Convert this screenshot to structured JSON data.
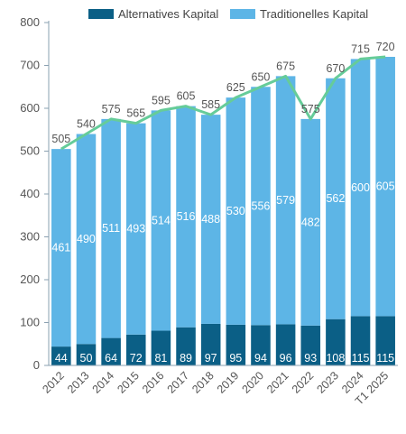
{
  "chart_data": {
    "type": "bar",
    "stacked": true,
    "categories": [
      "2012",
      "2013",
      "2014",
      "2015",
      "2016",
      "2017",
      "2018",
      "2019",
      "2020",
      "2021",
      "2022",
      "2023",
      "2024",
      "T1 2025"
    ],
    "series": [
      {
        "name": "Alternatives Kapital",
        "values": [
          44,
          50,
          64,
          72,
          81,
          89,
          97,
          95,
          94,
          96,
          93,
          108,
          115,
          115
        ]
      },
      {
        "name": "Traditionelles Kapital",
        "values": [
          461,
          490,
          511,
          493,
          514,
          516,
          488,
          530,
          556,
          579,
          482,
          562,
          600,
          605
        ]
      }
    ],
    "totals": [
      505,
      540,
      575,
      565,
      595,
      605,
      585,
      625,
      650,
      675,
      575,
      670,
      715,
      720
    ],
    "ylim": [
      0,
      800
    ],
    "yticks": [
      0,
      100,
      200,
      300,
      400,
      500,
      600,
      700,
      800
    ],
    "legend_position": "top",
    "grid": false,
    "colors": {
      "alternative": "#0b5f86",
      "traditional": "#5db5e6",
      "line": "#66cc99",
      "axis": "#8aa0b0"
    }
  }
}
